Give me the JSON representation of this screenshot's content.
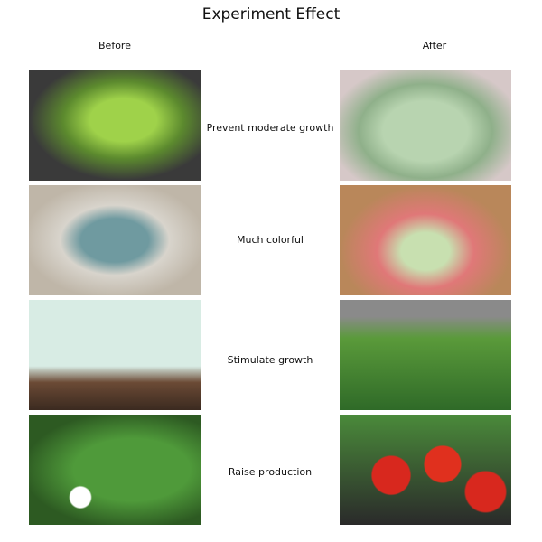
{
  "title": "Experiment Effect",
  "before_label": "Before",
  "after_label": "After",
  "rows": [
    {
      "effect": "Prevent moderate growth",
      "before_image": "succulent-in-pot",
      "after_image": "pale-green-succulent-cluster"
    },
    {
      "effect": "Much colorful",
      "before_image": "blue-succulent-rosette",
      "after_image": "pink-tipped-succulent"
    },
    {
      "effect": "Stimulate growth",
      "before_image": "seedlings-sprouting",
      "after_image": "leafy-green-plant"
    },
    {
      "effect": "Raise production",
      "before_image": "strawberry-flower-plant",
      "after_image": "ripe-strawberries"
    }
  ]
}
